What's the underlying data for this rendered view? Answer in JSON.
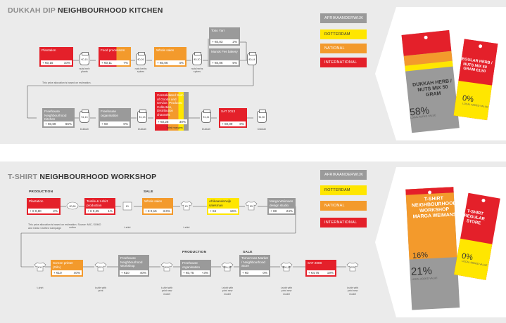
{
  "colors": {
    "afrikaanderwijk": "#9a9a9a",
    "rotterdam": "#ffe600",
    "national": "#f39a2c",
    "international": "#e4202a",
    "panel": "#ebebeb",
    "text": "#333333"
  },
  "legend": [
    {
      "label": "AFRIKAANDERWIJK",
      "color": "#9a9a9a"
    },
    {
      "label": "ROTTERDAM",
      "color": "#ffe600"
    },
    {
      "label": "NATIONAL",
      "color": "#f39a2c"
    },
    {
      "label": "INTERNATIONAL",
      "color": "#e4202a"
    }
  ],
  "dukkah": {
    "title_light": "DUKKAH DIP",
    "title_dark": "NEIGHBOURHOOD KITCHEN",
    "row1": [
      {
        "name": "Plantation",
        "value": "+ €0,15",
        "pct": "10%"
      },
      {
        "name": "Food processors",
        "value": "+ €0,11",
        "pct": "7%"
      },
      {
        "name": "Whole sales",
        "value": "+ €0,06",
        "pct": "4%"
      },
      {
        "name": "Toko Yarr",
        "value": "+ €0,03",
        "pct": "2%"
      },
      {
        "name": "Manok Fes bakery",
        "value": "+ €0,06",
        "pct": "5%"
      }
    ],
    "jars1": [
      "€0,15",
      "€0,26",
      "€0,26",
      "€0,30",
      "€0,44"
    ],
    "caps1": [
      "nuts herb plants",
      "nuts herbs spices",
      "nuts herbs spices",
      "nuts herbs spices"
    ],
    "note": "This price allocation is based on estimation.",
    "row2": [
      {
        "name": "Freehouse Neighbourhood Kitchen",
        "value": "+ €0,69",
        "pct": "66%"
      },
      {
        "name": "Freehouse organisation",
        "value": "+ €0",
        "pct": "0%"
      },
      {
        "name": "Consolidated Sum of Goods and service. Products: Collection, Distribution channels",
        "value": "+ €0,28",
        "pct": "30%",
        "extra": "Total margins"
      },
      {
        "name": "SAT 2013",
        "value": "+ €0,09",
        "pct": "8%"
      }
    ],
    "jars2": [
      "€1,13",
      "€1,13",
      "€1,41",
      "€1,50"
    ],
    "caps2": [
      "Dukkah",
      "Dukkah",
      "Dukkah",
      "Dukkah"
    ],
    "tag1": {
      "title": "DUKKAH HERB / NUTS MIX 50 GRAM",
      "pct": "58%",
      "sub": "LOCAL ADDED VALUE",
      "layer_national": "NATIONAL",
      "layer_int": "INTERNATIONAL",
      "layer_rotterdam": "ROTTERDAM"
    },
    "tag2": {
      "title": "REGULAR HERB / NUTS MIX 50 GRAM €3,50",
      "pct": "0%",
      "sub": "LOCAL ADDED VALUE"
    }
  },
  "tshirt": {
    "title_light": "T-SHIRT",
    "title_dark": "NEIGHBOURHOOD WORKSHOP",
    "section_production": "PRODUCTION",
    "section_sale": "SALE",
    "row1": [
      {
        "name": "Plantation",
        "value": "+ € 0,80",
        "pct": "2%"
      },
      {
        "name": "Textile & t-shirt production",
        "value": "+ € 0,25",
        "pct": "1%"
      },
      {
        "name": "Whole sales",
        "value": "+ € 0,15",
        "pct": "3.6%"
      },
      {
        "name": "Afrikaanderwijk salesman",
        "value": "+ €4",
        "pct": "16%"
      },
      {
        "name": "Marga Weimans design studio",
        "value": "+ €8",
        "pct": "24%"
      }
    ],
    "icons1": [
      "€0,80",
      "€1",
      "€1",
      "€5"
    ],
    "caps1": [
      "cotton",
      "t-shirt",
      "t-shirt"
    ],
    "note": "This price allocation is based on estimation. Source: MIC, SOMO and Clean Clothes Campaign",
    "section2_production": "PRODUCTION",
    "section2_sale": "SALE",
    "row2": [
      {
        "name": "Screen printer (Gilo)",
        "value": "+ €10",
        "pct": "40%"
      },
      {
        "name": "Freehouse Neighbourhood Workshop",
        "value": "+ €10",
        "pct": "40%"
      },
      {
        "name": "Freehouse organisation",
        "value": "+ €0,75",
        "pct": "+3%"
      },
      {
        "name": "Tomorrows Market / Neighbourhood Store",
        "value": "+ €0",
        "pct": "0%"
      },
      {
        "name": "SAT 2008",
        "value": "+ €4,75",
        "pct": "19%"
      }
    ],
    "shirts2": [
      "€11",
      "€21",
      "€20",
      "€20,25",
      "€20,25",
      "€25"
    ],
    "caps2": [
      "t-shirt",
      "t-shirt with print",
      "t-shirt with print new model",
      "t-shirt with print new model",
      "t-shirt with print new model",
      "t-shirt with print new model"
    ],
    "tag1": {
      "title": "T-SHIRT NEIGHBOURHOOD WORKSHOP MARGA WEIMANS",
      "pct_top": "16%",
      "pct": "21%",
      "sub": "LOCAL ADDED VALUE",
      "layer_int": "INTERNATIONAL",
      "layer_national": "NATIONAL"
    },
    "tag2": {
      "title": "T-SHIRT REGULAR STORE",
      "pct": "0%",
      "sub": "LOCAL ADDED VALUE"
    }
  }
}
